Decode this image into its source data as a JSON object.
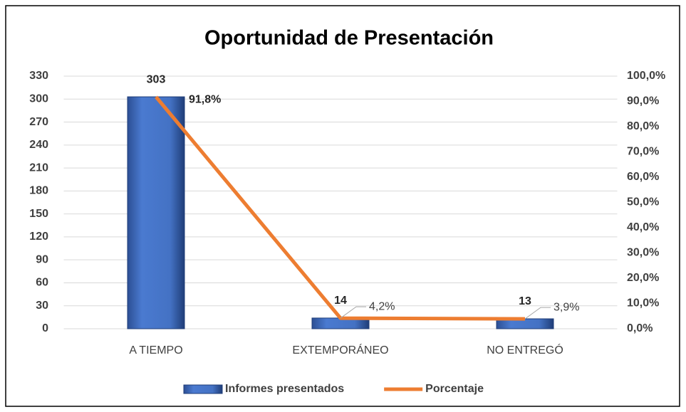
{
  "chart_data": {
    "type": "bar",
    "title": "Oportunidad de Presentación",
    "categories": [
      "A TIEMPO",
      "EXTEMPORÁNEO",
      "NO ENTREGÓ"
    ],
    "series": [
      {
        "name": "Informes presentados",
        "type": "bar",
        "color": "#4472c4",
        "values": [
          303,
          14,
          13
        ]
      },
      {
        "name": "Porcentaje",
        "type": "line",
        "axis": "y2",
        "color": "#ed7d31",
        "values": [
          91.8,
          4.2,
          3.9
        ],
        "value_labels": [
          "91,8%",
          "4,2%",
          "3,9%"
        ]
      }
    ],
    "ylim": [
      0,
      330
    ],
    "yticks": [
      0,
      30,
      60,
      90,
      120,
      150,
      180,
      210,
      240,
      270,
      300,
      330
    ],
    "y2lim": [
      0,
      100
    ],
    "y2ticks": [
      {
        "value": 0,
        "label": "0,0%"
      },
      {
        "value": 10,
        "label": "10,0%"
      },
      {
        "value": 20,
        "label": "20,0%"
      },
      {
        "value": 30,
        "label": "30,0%"
      },
      {
        "value": 40,
        "label": "40,0%"
      },
      {
        "value": 50,
        "label": "50,0%"
      },
      {
        "value": 60,
        "label": "60,0%"
      },
      {
        "value": 70,
        "label": "70,0%"
      },
      {
        "value": 80,
        "label": "80,0%"
      },
      {
        "value": 90,
        "label": "90,0%"
      },
      {
        "value": 100,
        "label": "100,0%"
      }
    ],
    "grid": true,
    "legend": "bottom"
  }
}
